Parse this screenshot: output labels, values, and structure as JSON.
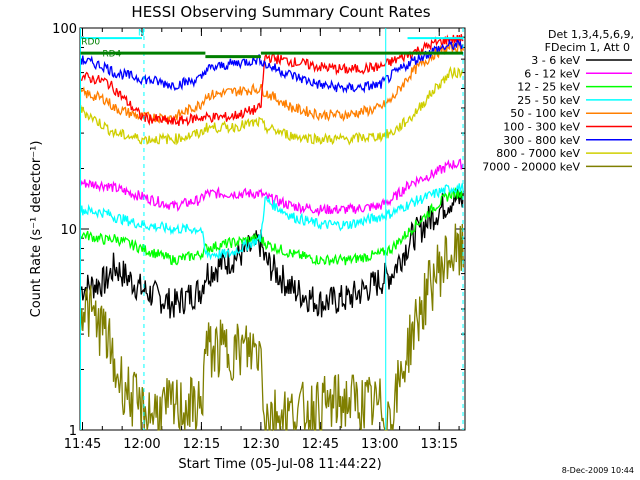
{
  "chart_data": {
    "type": "line",
    "title": "HESSI Observing Summary Count Rates",
    "xlabel": "Start Time (05-Jul-08 11:44:22)",
    "ylabel": "Count Rate (s⁻¹ detector⁻¹)",
    "x_ticks": [
      "11:45",
      "12:00",
      "12:15",
      "12:30",
      "12:45",
      "13:00",
      "13:15"
    ],
    "y_ticks": [
      "1",
      "10",
      "100"
    ],
    "y_scale": "log",
    "xlim": [
      "11:44:22",
      "13:21:30"
    ],
    "ylim": [
      1,
      100
    ],
    "legend_header": [
      "Det 1,3,4,5,6,9,",
      "FDecim 1, Att 0"
    ],
    "legend_position": "right",
    "attenuator_labels": [
      {
        "text": "N",
        "color": "#00ffff"
      },
      {
        "text": "RD0",
        "color": "#007f00"
      },
      {
        "text": "RD4",
        "color": "#007f00"
      }
    ],
    "footer_date": "8-Dec-2009 10:44",
    "time_points": [
      "11:44",
      "11:51",
      "11:53",
      "12:00",
      "12:08",
      "12:15",
      "12:16",
      "12:22",
      "12:30",
      "12:31",
      "12:38",
      "12:45",
      "12:52",
      "13:00",
      "13:03",
      "13:08",
      "13:14",
      "13:18"
    ],
    "series": [
      {
        "name": "3 - 6 keV",
        "color": "#000000",
        "values": [
          5,
          5.5,
          6.5,
          5,
          4.2,
          5,
          6,
          7,
          8.5,
          7,
          5,
          4.3,
          4.5,
          5.5,
          6,
          9,
          12,
          14
        ]
      },
      {
        "name": "6 - 12 keV",
        "color": "#ff00ff",
        "values": [
          17,
          16.5,
          16,
          14.5,
          13,
          14,
          15,
          15,
          15,
          14.5,
          13,
          12.5,
          12.5,
          13,
          14,
          17,
          19,
          21
        ]
      },
      {
        "name": "12 - 25 keV",
        "color": "#00ff00",
        "values": [
          9.5,
          8.8,
          9,
          8,
          7,
          7.5,
          8,
          8.5,
          9,
          8.5,
          7.5,
          7,
          7,
          7.5,
          8,
          10,
          13,
          15
        ]
      },
      {
        "name": "25 - 50 keV",
        "color": "#00ffff",
        "values": [
          12.5,
          12,
          11.5,
          10.5,
          10,
          10,
          7.5,
          7.5,
          9,
          14,
          11.5,
          10.5,
          10.5,
          11.5,
          12,
          13.5,
          15,
          16
        ]
      },
      {
        "name": "50 - 100 keV",
        "color": "#ff7f00",
        "values": [
          48,
          44,
          40,
          36,
          36,
          42,
          46,
          48,
          50,
          48,
          40,
          37,
          37,
          40,
          44,
          60,
          75,
          80
        ]
      },
      {
        "name": "100 - 300 keV",
        "color": "#ff0000",
        "values": [
          58,
          54,
          50,
          36,
          34,
          36,
          36,
          36,
          40,
          72,
          68,
          64,
          62,
          64,
          68,
          75,
          84,
          88
        ]
      },
      {
        "name": "300 - 800 keV",
        "color": "#0000ff",
        "values": [
          70,
          64,
          60,
          56,
          52,
          56,
          62,
          66,
          70,
          66,
          58,
          52,
          50,
          52,
          58,
          68,
          78,
          82
        ]
      },
      {
        "name": "800 - 7000 keV",
        "color": "#cfcf00",
        "values": [
          40,
          32,
          30,
          28,
          28,
          30,
          32,
          32,
          34,
          32,
          29,
          28,
          28,
          29,
          30,
          36,
          50,
          60
        ]
      },
      {
        "name": "7000 - 20000 keV",
        "color": "#7f7f00",
        "values": [
          4.5,
          3,
          2,
          1.2,
          1.3,
          1.3,
          2.5,
          2.5,
          2.5,
          1.2,
          1.2,
          1.3,
          1.4,
          1.3,
          1.2,
          3,
          6,
          7.5
        ]
      }
    ]
  }
}
